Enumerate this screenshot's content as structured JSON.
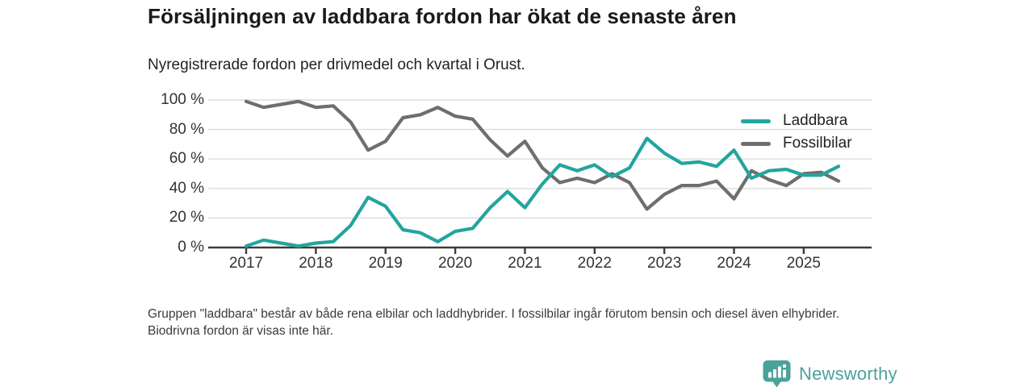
{
  "header": {
    "title": "Försäljningen av laddbara fordon har ökat de senaste åren",
    "subtitle": "Nyregistrerade fordon per drivmedel och kvartal i Orust."
  },
  "chart_data": {
    "type": "line",
    "title": "Nyregistrerade fordon per drivmedel och kvartal i Orust",
    "x_unit": "quarter",
    "x_quarters": [
      "2017 Q1",
      "2017 Q2",
      "2017 Q3",
      "2017 Q4",
      "2018 Q1",
      "2018 Q2",
      "2018 Q3",
      "2018 Q4",
      "2019 Q1",
      "2019 Q2",
      "2019 Q3",
      "2019 Q4",
      "2020 Q1",
      "2020 Q2",
      "2020 Q3",
      "2020 Q4",
      "2021 Q1",
      "2021 Q2",
      "2021 Q3",
      "2021 Q4",
      "2022 Q1",
      "2022 Q2",
      "2022 Q3",
      "2022 Q4",
      "2023 Q1",
      "2023 Q2",
      "2023 Q3",
      "2023 Q4",
      "2024 Q1",
      "2024 Q2",
      "2024 Q3",
      "2024 Q4",
      "2025 Q1",
      "2025 Q2",
      "2025 Q3"
    ],
    "x_tick_labels": [
      "2017",
      "2018",
      "2019",
      "2020",
      "2021",
      "2022",
      "2023",
      "2024",
      "2025"
    ],
    "y_tick_values": [
      0,
      20,
      40,
      60,
      80,
      100
    ],
    "y_tick_labels": [
      "0 %",
      "20 %",
      "40 %",
      "60 %",
      "80 %",
      "100 %"
    ],
    "ylim": [
      0,
      100
    ],
    "unit": "percent",
    "grid": "horizontal",
    "legend_position": "inside-top-right",
    "grid_color": "#dcdcdc",
    "axis_color": "#3c3c3c",
    "series": [
      {
        "name": "Laddbara",
        "color": "#23a59e",
        "values": [
          1,
          5,
          3,
          1,
          3,
          4,
          15,
          34,
          28,
          12,
          10,
          4,
          11,
          13,
          27,
          38,
          27,
          43,
          56,
          52,
          56,
          48,
          54,
          74,
          64,
          57,
          58,
          55,
          66,
          47,
          52,
          53,
          49,
          49,
          55
        ]
      },
      {
        "name": "Fossilbilar",
        "color": "#6e6e6e",
        "values": [
          99,
          95,
          97,
          99,
          95,
          96,
          85,
          66,
          72,
          88,
          90,
          95,
          89,
          87,
          73,
          62,
          72,
          54,
          44,
          47,
          44,
          50,
          44,
          26,
          36,
          42,
          42,
          45,
          33,
          52,
          46,
          42,
          50,
          51,
          45
        ]
      }
    ]
  },
  "footnote": {
    "text": "Gruppen \"laddbara\" består av både rena elbilar och laddhybrider. I fossilbilar ingår förutom bensin och diesel även elhybrider. Biodrivna fordon är visas inte här."
  },
  "branding": {
    "logo_text": "Newsworthy",
    "logo_color": "#4ba29a"
  }
}
